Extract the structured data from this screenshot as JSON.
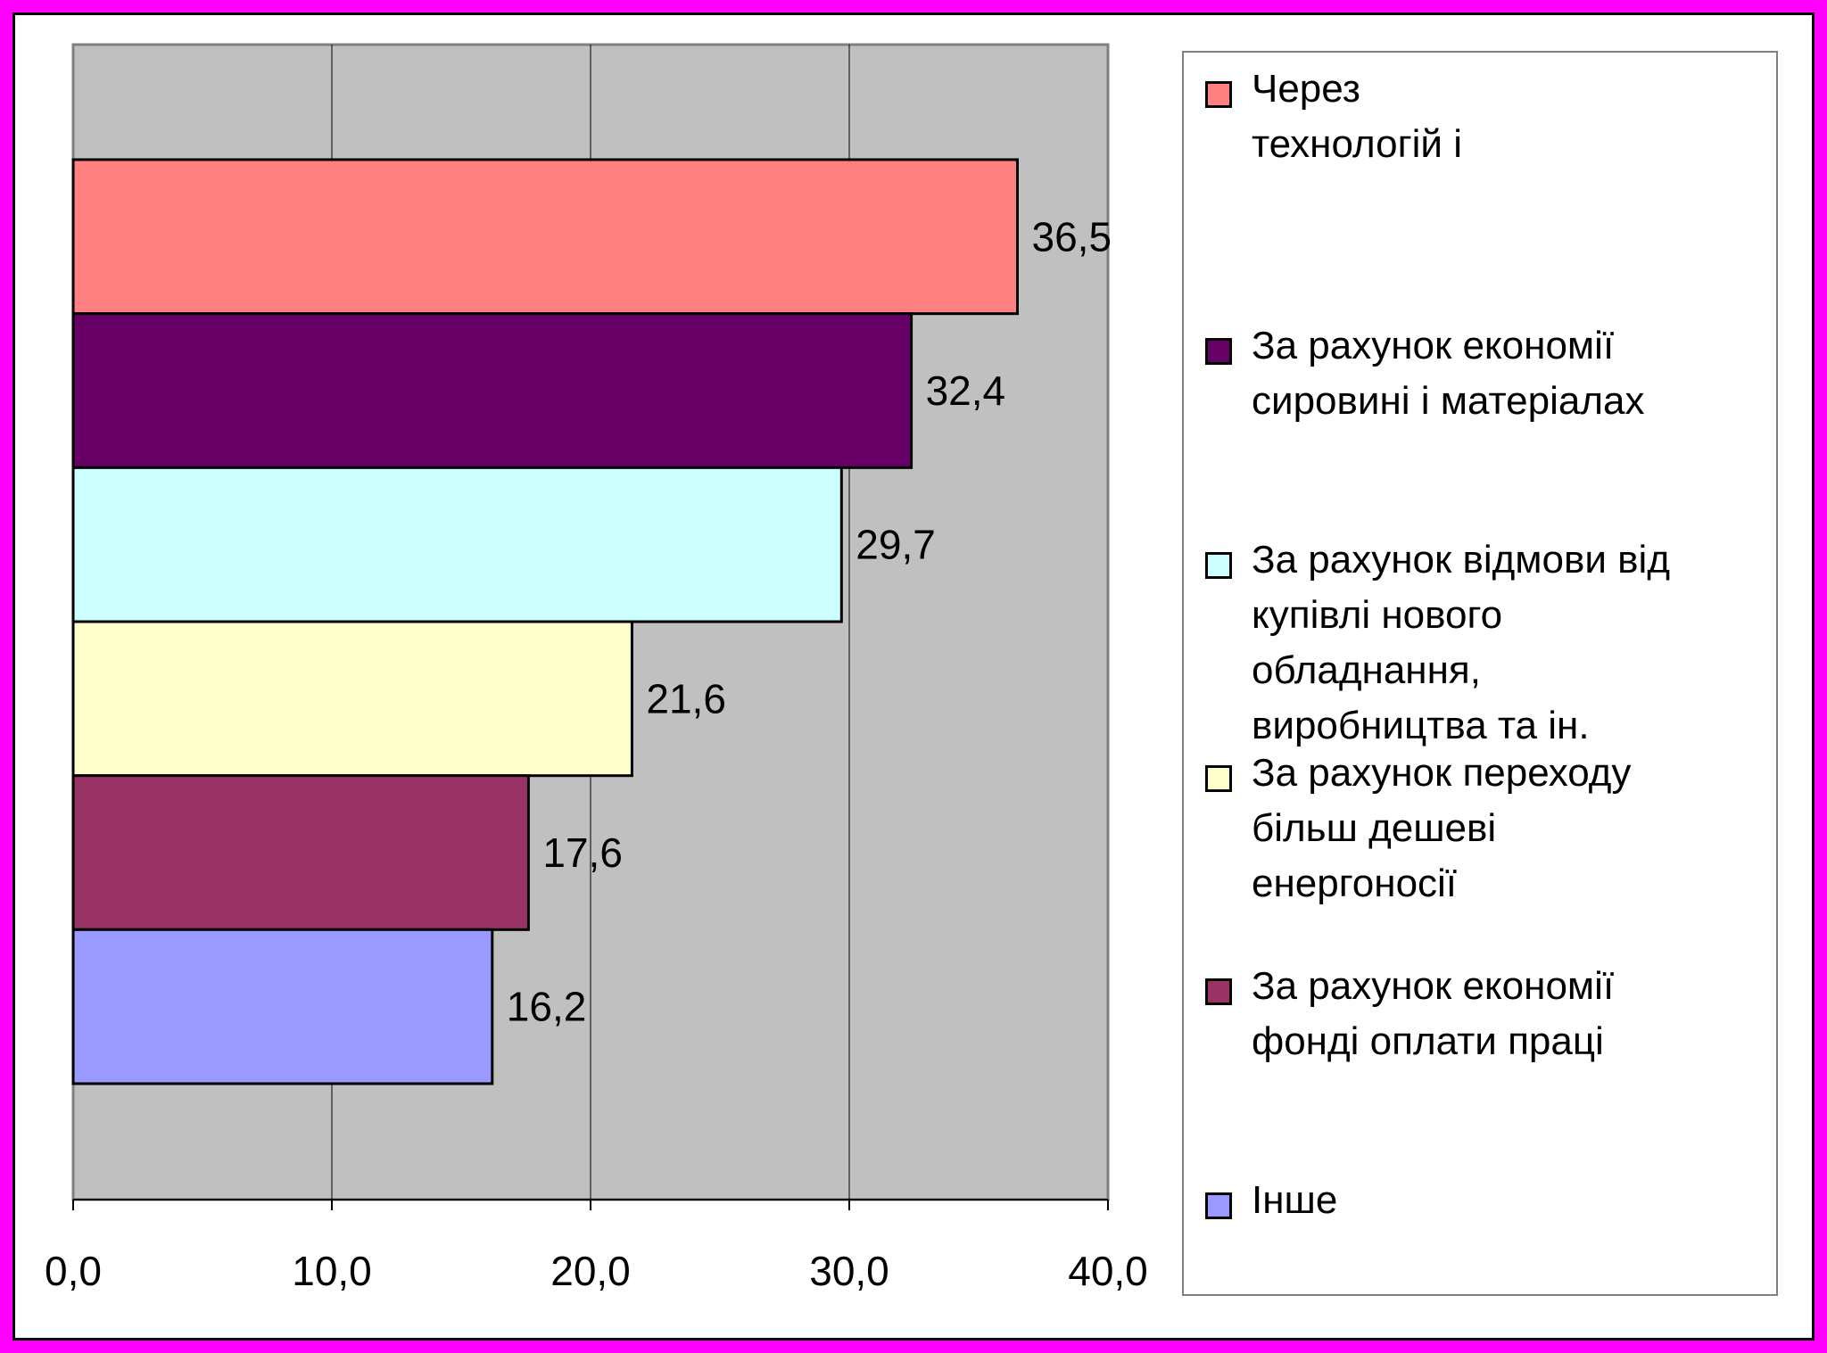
{
  "chart_data": {
    "type": "bar",
    "orientation": "horizontal",
    "categories": [
      "Через технологій і",
      "За рахунок економії сировині і матеріалах",
      "За рахунок відмови від купівлі нового обладнання, виробництва та ін.",
      "За рахунок переходу більш дешеві енергоносії",
      "За рахунок економії фонді оплати праці",
      "Інше"
    ],
    "values": [
      36.5,
      32.4,
      29.7,
      21.6,
      17.6,
      16.2
    ],
    "value_labels": [
      "36,5",
      "32,4",
      "29,7",
      "21,6",
      "17,6",
      "16,2"
    ],
    "colors": [
      "#ff8080",
      "#660066",
      "#ccffff",
      "#ffffcc",
      "#993366",
      "#9999ff"
    ],
    "xlim": [
      0,
      40
    ],
    "xticks": [
      0,
      10,
      20,
      30,
      40
    ],
    "xtick_labels": [
      "0,0",
      "10,0",
      "20,0",
      "30,0",
      "40,0"
    ],
    "plot_background": "#c0c0c0",
    "grid": true,
    "legend_position": "right",
    "title": "",
    "xlabel": "",
    "ylabel": ""
  },
  "legend": {
    "items": [
      {
        "label": "Через\nтехнологій і",
        "color": "#ff8080"
      },
      {
        "label": "За рахунок економії\nсировині і матеріалах",
        "color": "#660066"
      },
      {
        "label": "За рахунок відмови від\nкупівлі нового\nобладнання,\nвиробництва та ін.",
        "color": "#ccffff"
      },
      {
        "label": "За рахунок переходу\nбільш дешеві\nенергоносії",
        "color": "#ffffcc"
      },
      {
        "label": "За рахунок економії\nфонді оплати праці",
        "color": "#993366"
      },
      {
        "label": "Інше",
        "color": "#9999ff"
      }
    ]
  },
  "frame": {
    "border_color": "#ff00ff"
  }
}
